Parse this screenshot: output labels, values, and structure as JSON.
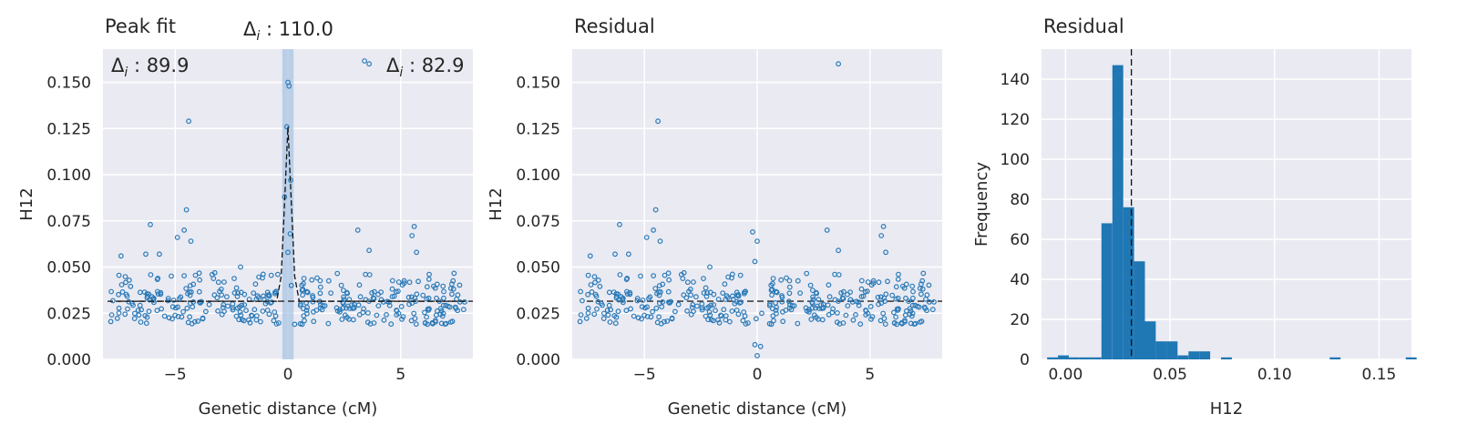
{
  "chart_data": [
    {
      "type": "scatter",
      "title": "Peak fit",
      "xlabel": "Genetic distance (cM)",
      "ylabel": "H12",
      "xlim": [
        -8.2,
        8.2
      ],
      "ylim": [
        0,
        0.168
      ],
      "xticks": [
        {
          "v": -5,
          "label": "−5"
        },
        {
          "v": 0,
          "label": "0"
        },
        {
          "v": 5,
          "label": "5"
        }
      ],
      "yticks": [
        {
          "v": 0,
          "label": "0.000"
        },
        {
          "v": 0.025,
          "label": "0.025"
        },
        {
          "v": 0.05,
          "label": "0.050"
        },
        {
          "v": 0.075,
          "label": "0.075"
        },
        {
          "v": 0.1,
          "label": "0.100"
        },
        {
          "v": 0.125,
          "label": "0.125"
        },
        {
          "v": 0.15,
          "label": "0.150"
        }
      ],
      "baseline": 0.0315,
      "peak_band": [
        -0.25,
        0.25
      ],
      "fit_curve": [
        [
          -8,
          0.0315
        ],
        [
          -0.5,
          0.0315
        ],
        [
          -0.3,
          0.045
        ],
        [
          -0.15,
          0.085
        ],
        [
          0,
          0.126
        ],
        [
          0.15,
          0.085
        ],
        [
          0.3,
          0.045
        ],
        [
          0.5,
          0.0315
        ],
        [
          8,
          0.0315
        ]
      ],
      "annotations": [
        {
          "text_pre": "Δ",
          "text_sub": "i",
          "text_post": " : 110.0",
          "pos": "top-center-outside"
        },
        {
          "text_pre": "Δ",
          "text_sub": "i",
          "text_post": " : 89.9",
          "pos": "top-left"
        },
        {
          "text_pre": "Δ",
          "text_sub": "i",
          "text_post": " : 82.9",
          "pos": "top-right"
        }
      ],
      "outliers": [
        [
          -4.4,
          0.129
        ],
        [
          -4.5,
          0.081
        ],
        [
          -4.6,
          0.07
        ],
        [
          -4.3,
          0.064
        ],
        [
          -6.1,
          0.073
        ],
        [
          -4.9,
          0.066
        ],
        [
          -0.05,
          0.126
        ],
        [
          0.0,
          0.15
        ],
        [
          0.05,
          0.148
        ],
        [
          0.12,
          0.097
        ],
        [
          -0.15,
          0.088
        ],
        [
          0.1,
          0.068
        ],
        [
          0.0,
          0.058
        ],
        [
          3.1,
          0.07
        ],
        [
          3.6,
          0.059
        ],
        [
          5.6,
          0.072
        ],
        [
          5.5,
          0.067
        ],
        [
          5.7,
          0.058
        ],
        [
          3.6,
          0.16
        ],
        [
          -7.4,
          0.056
        ],
        [
          -5.7,
          0.057
        ],
        [
          -6.3,
          0.057
        ],
        [
          -0.45,
          0.046
        ],
        [
          -2.1,
          0.05
        ],
        [
          0.3,
          0.019
        ],
        [
          0.15,
          0.04
        ]
      ]
    },
    {
      "type": "scatter",
      "title": "Residual",
      "xlabel": "Genetic distance (cM)",
      "ylabel": "H12",
      "xlim": [
        -8.2,
        8.2
      ],
      "ylim": [
        0,
        0.168
      ],
      "xticks": [
        {
          "v": -5,
          "label": "−5"
        },
        {
          "v": 0,
          "label": "0"
        },
        {
          "v": 5,
          "label": "5"
        }
      ],
      "yticks": [
        {
          "v": 0,
          "label": "0.000"
        },
        {
          "v": 0.025,
          "label": "0.025"
        },
        {
          "v": 0.05,
          "label": "0.050"
        },
        {
          "v": 0.075,
          "label": "0.075"
        },
        {
          "v": 0.1,
          "label": "0.100"
        },
        {
          "v": 0.125,
          "label": "0.125"
        },
        {
          "v": 0.15,
          "label": "0.150"
        }
      ],
      "baseline": 0.0315,
      "outliers": [
        [
          -4.4,
          0.129
        ],
        [
          -4.5,
          0.081
        ],
        [
          -4.6,
          0.07
        ],
        [
          -4.3,
          0.064
        ],
        [
          -6.1,
          0.073
        ],
        [
          -4.9,
          0.066
        ],
        [
          3.1,
          0.07
        ],
        [
          3.6,
          0.059
        ],
        [
          5.6,
          0.072
        ],
        [
          5.5,
          0.067
        ],
        [
          5.7,
          0.058
        ],
        [
          3.6,
          0.16
        ],
        [
          -0.2,
          0.069
        ],
        [
          0.0,
          0.064
        ],
        [
          -0.1,
          0.053
        ],
        [
          0.0,
          0.002
        ],
        [
          -0.1,
          0.008
        ],
        [
          0.15,
          0.007
        ],
        [
          -0.05,
          0.022
        ],
        [
          0.2,
          0.025
        ],
        [
          -7.4,
          0.056
        ],
        [
          -5.7,
          0.057
        ],
        [
          -6.3,
          0.057
        ],
        [
          -2.1,
          0.05
        ]
      ]
    },
    {
      "type": "bar",
      "title": "Residual",
      "xlabel": "H12",
      "ylabel": "Frequency",
      "xlim": [
        -0.0115,
        0.1655
      ],
      "ylim": [
        0,
        155
      ],
      "xticks": [
        {
          "v": 0,
          "label": "0.00"
        },
        {
          "v": 0.05,
          "label": "0.05"
        },
        {
          "v": 0.1,
          "label": "0.10"
        },
        {
          "v": 0.15,
          "label": "0.15"
        }
      ],
      "yticks": [
        {
          "v": 0,
          "label": "0"
        },
        {
          "v": 20,
          "label": "20"
        },
        {
          "v": 40,
          "label": "40"
        },
        {
          "v": 60,
          "label": "60"
        },
        {
          "v": 80,
          "label": "80"
        },
        {
          "v": 100,
          "label": "100"
        },
        {
          "v": 120,
          "label": "120"
        },
        {
          "v": 140,
          "label": "140"
        }
      ],
      "bin_start": -0.0088,
      "bin_width": 0.0052,
      "counts": [
        1,
        2,
        1,
        1,
        1,
        68,
        147,
        76,
        49,
        19,
        9,
        9,
        2,
        4,
        4,
        0,
        1,
        0,
        0,
        0,
        0,
        0,
        0,
        0,
        0,
        0,
        1,
        0,
        0,
        0,
        0,
        0,
        0,
        1
      ],
      "mean_line": 0.0315
    }
  ],
  "colors": {
    "point": "#2a7ab8",
    "bar": "#1f77b4",
    "panel_bg": "#eaeaf2",
    "grid": "#ffffff",
    "band": "#a9c6e3"
  }
}
